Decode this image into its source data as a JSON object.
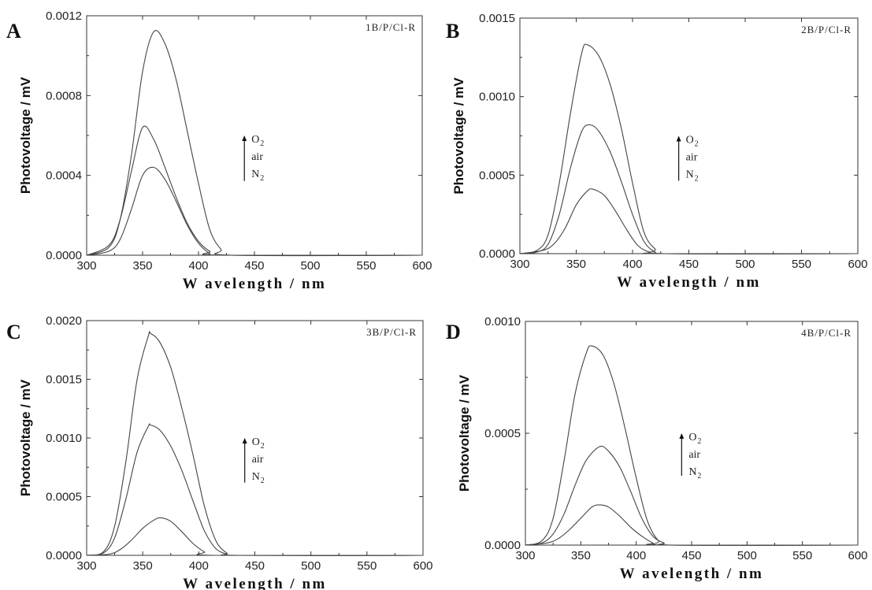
{
  "chart_data": [
    {
      "type": "line",
      "panel": "A",
      "sample_label": "1B/P/Cl-R",
      "xlabel": "W avelength / nm",
      "ylabel": "Photovoltage / mV",
      "xlim": [
        300,
        600
      ],
      "ylim": [
        0,
        0.0012
      ],
      "x_ticks": [
        "300",
        "350",
        "400",
        "450",
        "500",
        "550",
        "600"
      ],
      "y_ticks": [
        "0.0000",
        "0.0004",
        "0.0008",
        "0.0012"
      ],
      "gas_labels": [
        "O",
        "air",
        "N"
      ],
      "gas_subscripts": [
        "2",
        "2"
      ],
      "series": [
        {
          "peak_x": 360,
          "peak_y": 0.00112,
          "values": [
            [
              300,
              0
            ],
            [
              320,
              4e-05
            ],
            [
              330,
              0.00018
            ],
            [
              340,
              0.0005
            ],
            [
              350,
              0.00092
            ],
            [
              360,
              0.00112
            ],
            [
              370,
              0.00106
            ],
            [
              380,
              0.00088
            ],
            [
              390,
              0.00062
            ],
            [
              400,
              0.00036
            ],
            [
              410,
              0.00013
            ],
            [
              420,
              3e-05
            ],
            [
              430,
              0
            ],
            [
              600,
              0
            ]
          ]
        },
        {
          "peak_x": 351,
          "peak_y": 0.00065,
          "values": [
            [
              300,
              0
            ],
            [
              320,
              5e-05
            ],
            [
              330,
              0.00018
            ],
            [
              340,
              0.00042
            ],
            [
              350,
              0.00064
            ],
            [
              360,
              0.00058
            ],
            [
              370,
              0.00044
            ],
            [
              380,
              0.00029
            ],
            [
              390,
              0.00016
            ],
            [
              400,
              7e-05
            ],
            [
              410,
              2e-05
            ],
            [
              420,
              0
            ],
            [
              600,
              0
            ]
          ]
        },
        {
          "peak_x": 359,
          "peak_y": 0.00044,
          "values": [
            [
              300,
              0
            ],
            [
              320,
              2e-05
            ],
            [
              330,
              8e-05
            ],
            [
              340,
              0.00023
            ],
            [
              350,
              0.0004
            ],
            [
              360,
              0.00044
            ],
            [
              370,
              0.00038
            ],
            [
              380,
              0.00027
            ],
            [
              390,
              0.00015
            ],
            [
              400,
              6e-05
            ],
            [
              410,
              1e-05
            ],
            [
              420,
              0
            ],
            [
              600,
              0
            ]
          ]
        }
      ]
    },
    {
      "type": "line",
      "panel": "B",
      "sample_label": "2B/P/Cl-R",
      "xlabel": "W avelength / nm",
      "ylabel": "Photovoltage / mV",
      "xlim": [
        300,
        600
      ],
      "ylim": [
        0,
        0.0015
      ],
      "x_ticks": [
        "300",
        "350",
        "400",
        "450",
        "500",
        "550",
        "600"
      ],
      "y_ticks": [
        "0.0000",
        "0.0005",
        "0.0010",
        "0.0015"
      ],
      "gas_labels": [
        "O",
        "air",
        "N"
      ],
      "gas_subscripts": [
        "2",
        "2"
      ],
      "series": [
        {
          "peak_x": 358,
          "peak_y": 0.00133,
          "values": [
            [
              300,
              0
            ],
            [
              315,
              2e-05
            ],
            [
              325,
              0.00012
            ],
            [
              335,
              0.00045
            ],
            [
              345,
              0.0009
            ],
            [
              355,
              0.00128
            ],
            [
              360,
              0.00133
            ],
            [
              370,
              0.00126
            ],
            [
              380,
              0.00108
            ],
            [
              390,
              0.0008
            ],
            [
              400,
              0.00045
            ],
            [
              410,
              0.00014
            ],
            [
              420,
              3e-05
            ],
            [
              430,
              0
            ],
            [
              600,
              0
            ]
          ]
        },
        {
          "peak_x": 362,
          "peak_y": 0.00082,
          "values": [
            [
              300,
              0
            ],
            [
              315,
              1e-05
            ],
            [
              325,
              6e-05
            ],
            [
              335,
              0.00025
            ],
            [
              345,
              0.00055
            ],
            [
              355,
              0.00078
            ],
            [
              362,
              0.00082
            ],
            [
              370,
              0.00078
            ],
            [
              380,
              0.00065
            ],
            [
              390,
              0.00046
            ],
            [
              400,
              0.00025
            ],
            [
              410,
              8e-05
            ],
            [
              420,
              1e-05
            ],
            [
              430,
              0
            ],
            [
              600,
              0
            ]
          ]
        },
        {
          "peak_x": 365,
          "peak_y": 0.00041,
          "values": [
            [
              300,
              0
            ],
            [
              320,
              2e-05
            ],
            [
              330,
              6e-05
            ],
            [
              340,
              0.00016
            ],
            [
              350,
              0.00031
            ],
            [
              360,
              0.0004
            ],
            [
              365,
              0.00041
            ],
            [
              375,
              0.00037
            ],
            [
              385,
              0.00027
            ],
            [
              395,
              0.00015
            ],
            [
              405,
              5e-05
            ],
            [
              415,
              1e-05
            ],
            [
              425,
              0
            ],
            [
              600,
              0
            ]
          ]
        }
      ]
    },
    {
      "type": "line",
      "panel": "C",
      "sample_label": "3B/P/Cl-R",
      "xlabel": "W avelength / nm",
      "ylabel": "Photovoltage / mV",
      "xlim": [
        300,
        600
      ],
      "ylim": [
        0,
        0.002
      ],
      "x_ticks": [
        "300",
        "350",
        "400",
        "450",
        "500",
        "550",
        "600"
      ],
      "y_ticks": [
        "0.0000",
        "0.0005",
        "0.0010",
        "0.0015",
        "0.0020"
      ],
      "gas_labels": [
        "O",
        "air",
        "N"
      ],
      "gas_subscripts": [
        "2",
        "2"
      ],
      "series": [
        {
          "peak_x": 357,
          "peak_y": 0.00189,
          "values": [
            [
              300,
              0
            ],
            [
              315,
              3e-05
            ],
            [
              325,
              0.00025
            ],
            [
              335,
              0.0008
            ],
            [
              345,
              0.0015
            ],
            [
              355,
              0.00187
            ],
            [
              357,
              0.00189
            ],
            [
              365,
              0.00182
            ],
            [
              375,
              0.0016
            ],
            [
              385,
              0.00125
            ],
            [
              395,
              0.00085
            ],
            [
              405,
              0.00042
            ],
            [
              415,
              0.00013
            ],
            [
              425,
              2e-05
            ],
            [
              435,
              0
            ],
            [
              600,
              0
            ]
          ]
        },
        {
          "peak_x": 357,
          "peak_y": 0.00111,
          "values": [
            [
              300,
              0
            ],
            [
              315,
              2e-05
            ],
            [
              325,
              0.00015
            ],
            [
              335,
              0.00048
            ],
            [
              345,
              0.00088
            ],
            [
              355,
              0.0011
            ],
            [
              357,
              0.00111
            ],
            [
              365,
              0.00107
            ],
            [
              375,
              0.00093
            ],
            [
              385,
              0.00072
            ],
            [
              395,
              0.00046
            ],
            [
              405,
              0.00021
            ],
            [
              415,
              6e-05
            ],
            [
              425,
              1e-05
            ],
            [
              435,
              0
            ],
            [
              600,
              0
            ]
          ]
        },
        {
          "peak_x": 366,
          "peak_y": 0.00032,
          "values": [
            [
              300,
              0
            ],
            [
              320,
              1e-05
            ],
            [
              330,
              5e-05
            ],
            [
              340,
              0.00013
            ],
            [
              350,
              0.00023
            ],
            [
              360,
              0.0003
            ],
            [
              366,
              0.00032
            ],
            [
              375,
              0.00029
            ],
            [
              385,
              0.0002
            ],
            [
              395,
              0.0001
            ],
            [
              405,
              3e-05
            ],
            [
              415,
              0
            ],
            [
              600,
              0
            ]
          ]
        }
      ]
    },
    {
      "type": "line",
      "panel": "D",
      "sample_label": "4B/P/Cl-R",
      "xlabel": "W avelength / nm",
      "ylabel": "Photovoltage / mV",
      "xlim": [
        300,
        600
      ],
      "ylim": [
        0,
        0.001
      ],
      "x_ticks": [
        "300",
        "350",
        "400",
        "450",
        "500",
        "550",
        "600"
      ],
      "y_ticks": [
        "0.0000",
        "0.0005",
        "0.0010"
      ],
      "gas_labels": [
        "O",
        "air",
        "N"
      ],
      "gas_subscripts": [
        "2",
        "2"
      ],
      "series": [
        {
          "peak_x": 360,
          "peak_y": 0.00089,
          "values": [
            [
              300,
              0
            ],
            [
              315,
              2e-05
            ],
            [
              325,
              0.00012
            ],
            [
              335,
              0.00038
            ],
            [
              345,
              0.00068
            ],
            [
              355,
              0.00086
            ],
            [
              360,
              0.00089
            ],
            [
              370,
              0.00085
            ],
            [
              380,
              0.00072
            ],
            [
              390,
              0.00052
            ],
            [
              400,
              0.0003
            ],
            [
              410,
              0.00011
            ],
            [
              420,
              2e-05
            ],
            [
              430,
              0
            ],
            [
              600,
              0
            ]
          ]
        },
        {
          "peak_x": 367,
          "peak_y": 0.00044,
          "values": [
            [
              300,
              0
            ],
            [
              315,
              1e-05
            ],
            [
              325,
              5e-05
            ],
            [
              335,
              0.00014
            ],
            [
              345,
              0.00027
            ],
            [
              355,
              0.00038
            ],
            [
              367,
              0.00044
            ],
            [
              375,
              0.00042
            ],
            [
              385,
              0.00035
            ],
            [
              395,
              0.00024
            ],
            [
              405,
              0.00012
            ],
            [
              415,
              4e-05
            ],
            [
              425,
              1e-05
            ],
            [
              435,
              0
            ],
            [
              600,
              0
            ]
          ]
        },
        {
          "peak_x": 367,
          "peak_y": 0.00018,
          "values": [
            [
              300,
              0
            ],
            [
              320,
              1e-05
            ],
            [
              330,
              3e-05
            ],
            [
              340,
              7e-05
            ],
            [
              350,
              0.00012
            ],
            [
              360,
              0.00017
            ],
            [
              367,
              0.00018
            ],
            [
              375,
              0.00017
            ],
            [
              385,
              0.00013
            ],
            [
              395,
              8e-05
            ],
            [
              405,
              4e-05
            ],
            [
              415,
              1e-05
            ],
            [
              425,
              0
            ],
            [
              600,
              0
            ]
          ]
        }
      ]
    }
  ]
}
